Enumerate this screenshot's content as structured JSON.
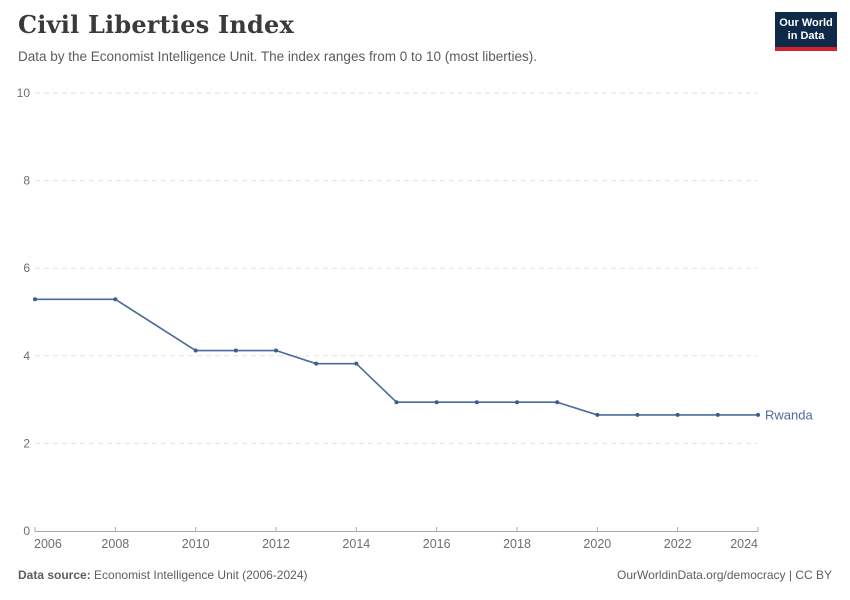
{
  "header": {
    "title": "Civil Liberties Index",
    "subtitle": "Data by the Economist Intelligence Unit. The index ranges from 0 to 10 (most liberties).",
    "logo": {
      "line1": "Our World",
      "line2": "in Data"
    }
  },
  "colors": {
    "series": "#4c6a9c",
    "series_dot": "#3f5c8e",
    "grid": "#e2e2e2",
    "axis": "#a8a8a8",
    "tick_label": "#6e6e6e",
    "logo_bg": "#0f2949",
    "logo_accent": "#d1232a"
  },
  "chart_data": {
    "type": "line",
    "title": "Civil Liberties Index",
    "subtitle": "Data by the Economist Intelligence Unit. The index ranges from 0 to 10 (most liberties).",
    "x": [
      2006,
      2008,
      2010,
      2011,
      2012,
      2013,
      2014,
      2015,
      2016,
      2017,
      2018,
      2019,
      2020,
      2021,
      2022,
      2023,
      2024
    ],
    "series": [
      {
        "name": "Rwanda",
        "color": "#4c6a9c",
        "values": [
          5.29,
          5.29,
          4.12,
          4.12,
          4.12,
          3.82,
          3.82,
          2.94,
          2.94,
          2.94,
          2.94,
          2.94,
          2.65,
          2.65,
          2.65,
          2.65,
          2.65
        ]
      }
    ],
    "xlim": [
      2006,
      2024
    ],
    "ylim": [
      0,
      10
    ],
    "yticks": [
      0,
      2,
      4,
      6,
      8,
      10
    ],
    "xticks": [
      2006,
      2008,
      2010,
      2012,
      2014,
      2016,
      2018,
      2020,
      2022,
      2024
    ],
    "grid": "dashed-horizontal",
    "legend": "end-of-line-label"
  },
  "footer": {
    "source_label": "Data source:",
    "source_text": " Economist Intelligence Unit (2006-2024)",
    "credit": "OurWorldinData.org/democracy | CC BY"
  }
}
